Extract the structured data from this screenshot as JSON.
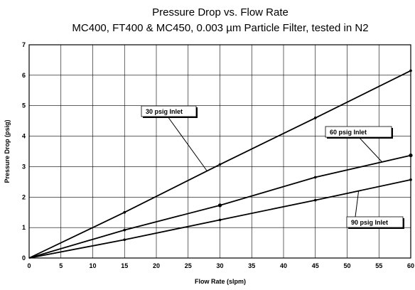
{
  "chart_data": {
    "type": "line",
    "title": "Pressure Drop vs. Flow Rate",
    "subtitle": "MC400, FT400 & MC450, 0.003 µm Particle Filter, tested in N2",
    "xlabel": "Flow Rate (slpm)",
    "ylabel": "Pressure Drop (psig)",
    "xlim": [
      0,
      60
    ],
    "ylim": [
      0,
      7
    ],
    "xticks": [
      0,
      5,
      10,
      15,
      20,
      25,
      30,
      35,
      40,
      45,
      50,
      55,
      60
    ],
    "yticks": [
      0,
      1,
      2,
      3,
      4,
      5,
      6,
      7
    ],
    "grid": true,
    "series": [
      {
        "name": "30 psig Inlet",
        "x": [
          0,
          15,
          30,
          45,
          60
        ],
        "y": [
          0,
          1.5,
          3.07,
          4.6,
          6.15
        ]
      },
      {
        "name": "60 psig Inlet",
        "x": [
          0,
          15,
          30,
          45,
          60
        ],
        "y": [
          0,
          0.92,
          1.73,
          2.65,
          3.37
        ]
      },
      {
        "name": "90 psig Inlet",
        "x": [
          0,
          15,
          30,
          45,
          60
        ],
        "y": [
          0,
          0.6,
          1.25,
          1.9,
          2.57
        ]
      }
    ]
  }
}
